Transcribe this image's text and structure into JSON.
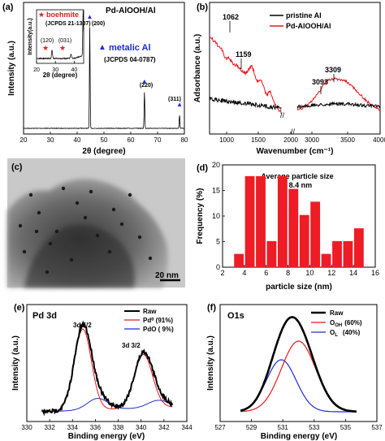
{
  "panels": {
    "a": {
      "label": "(a)",
      "title": "Pd-AlOOH/Al",
      "legend_star": "boehmite",
      "legend_star_ref": "(JCPDS 21-1307)",
      "legend_tri": "metalic Al",
      "legend_tri_ref": "(JCPDS 04-0787)",
      "peaks": [
        "(200)",
        "(220)",
        "(311)"
      ],
      "inset_peaks": [
        "(120)",
        "(031)"
      ]
    },
    "b": {
      "label": "(b)",
      "annotations": [
        "1062",
        "1159",
        "3093",
        "3309"
      ]
    },
    "c": {
      "label": "(c)",
      "scale_bar": "20 nm"
    },
    "d": {
      "label": "(d)",
      "title_line1": "Average particle size",
      "title_line2": "= 8.4 nm"
    },
    "e": {
      "label": "(e)",
      "title": "Pd 3d",
      "annotations": [
        "3d 5/2",
        "3d 3/2"
      ]
    },
    "f": {
      "label": "(f)",
      "title": "O1s"
    }
  },
  "colors": {
    "red": "#e8191f",
    "blue": "#1f2bd6",
    "black": "#000000",
    "bar": "#ee1c25"
  },
  "chart_data": [
    {
      "id": "a",
      "type": "line",
      "xlabel": "2θ (degree)",
      "ylabel": "Intensity (a.u.)",
      "xlim": [
        20,
        80
      ],
      "x_ticks": [
        "20",
        "30",
        "40",
        "50",
        "60",
        "70",
        "80"
      ],
      "peaks_x": [
        44.7,
        65.1,
        78.2
      ],
      "peak_heights": [
        0.92,
        0.33,
        0.12
      ],
      "inset": {
        "xlabel": "2θ (degree)",
        "ylabel": "Intensity(a.u.)",
        "xlim": [
          20,
          45
        ],
        "x_ticks": [
          "20",
          "30",
          "40"
        ],
        "peaks_x": [
          28.2,
          38.3,
          44.7
        ]
      }
    },
    {
      "id": "b",
      "type": "line",
      "xlabel": "Wavenumber (cm⁻¹)",
      "ylabel": "Adsorbance (a.u.)",
      "x_ticks": [
        "1000",
        "1500",
        "2000",
        "3000",
        "3500",
        "4000"
      ],
      "series": [
        {
          "name": "pristine Al",
          "color": "#000000"
        },
        {
          "name": "Pd-AlOOH/Al",
          "color": "#e8191f"
        }
      ]
    },
    {
      "id": "d",
      "type": "bar",
      "xlabel": "particle size (nm)",
      "ylabel": "Frequency (%)",
      "xlim": [
        2,
        16
      ],
      "ylim": [
        0,
        20
      ],
      "x_ticks": [
        "2",
        "4",
        "6",
        "8",
        "10",
        "12",
        "14",
        "16"
      ],
      "y_ticks": [
        "0",
        "5",
        "10",
        "15",
        "20"
      ],
      "x": [
        3.5,
        4.5,
        5.5,
        6.5,
        7.5,
        8.5,
        9.5,
        10.5,
        11.5,
        12.5,
        13.5,
        14.5
      ],
      "values": [
        2.6,
        17.8,
        17.8,
        5.1,
        17.8,
        15.3,
        10.2,
        12.8,
        2.6,
        5.1,
        5.1,
        7.6
      ]
    },
    {
      "id": "e",
      "type": "line",
      "xlabel": "Binding energy (eV)",
      "ylabel": "Intensity (a.u.)",
      "xlim": [
        330,
        344
      ],
      "x_ticks": [
        "330",
        "332",
        "334",
        "336",
        "338",
        "340",
        "342",
        "344"
      ],
      "series": [
        {
          "name": "Raw",
          "color": "#000000"
        },
        {
          "name": "Pd⁰ (91%)",
          "color": "#e8191f"
        },
        {
          "name": "PdO ( 9%)",
          "color": "#1f2bd6"
        }
      ]
    },
    {
      "id": "f",
      "type": "line",
      "xlabel": "Binding energy (eV)",
      "ylabel": "Intensity (a.u.)",
      "xlim": [
        527,
        537
      ],
      "x_ticks": [
        "527",
        "529",
        "531",
        "533",
        "535",
        "537"
      ],
      "series": [
        {
          "name": "Raw",
          "color": "#000000"
        },
        {
          "name": "O",
          "sub": "OH",
          "pct": "(60%)",
          "color": "#e8191f"
        },
        {
          "name": "O",
          "sub": "L",
          "pct": "(40%)",
          "color": "#1f2bd6"
        }
      ]
    }
  ]
}
